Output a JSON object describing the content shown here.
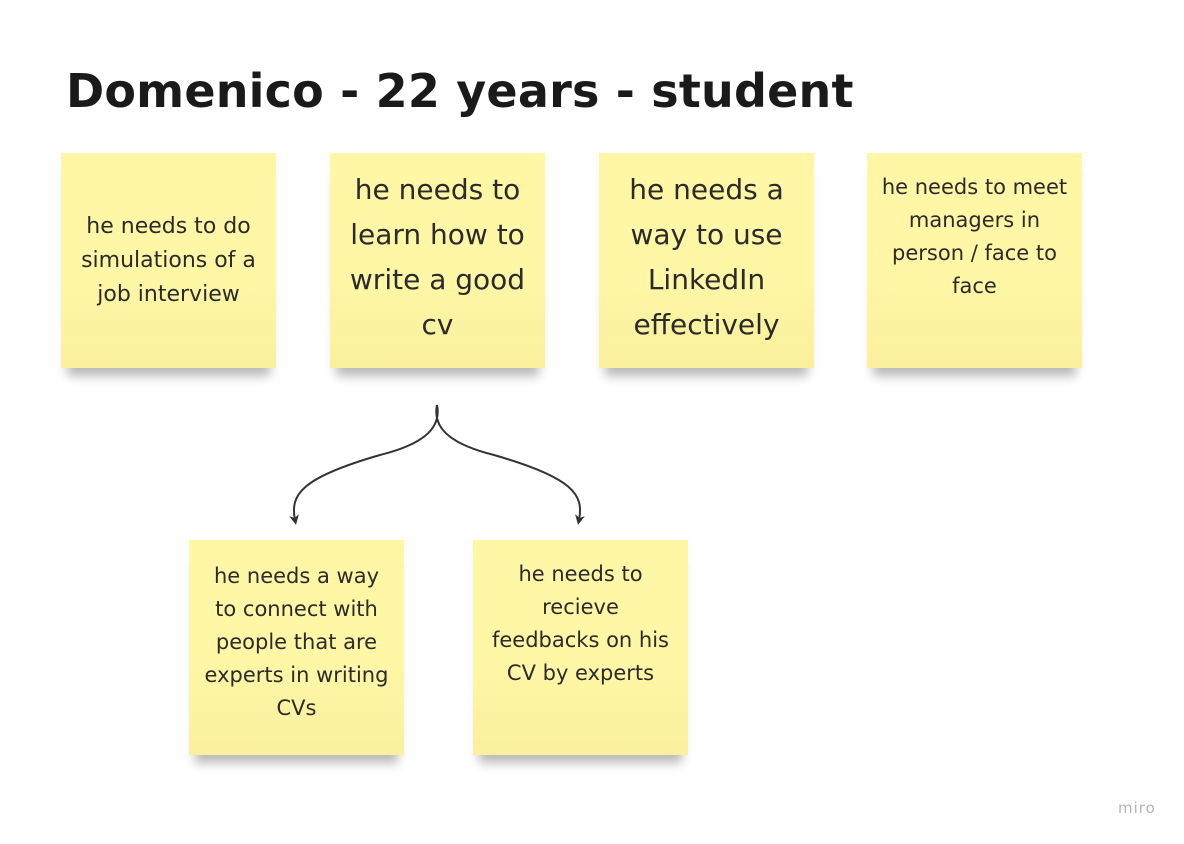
{
  "title": "Domenico - 22 years - student",
  "notes": [
    {
      "text": "he needs to do simulations of a job interview"
    },
    {
      "text": "he needs to learn how to write a good cv"
    },
    {
      "text": "he needs a way to use LinkedIn effectively"
    },
    {
      "text": "he needs to meet managers in person / face to face"
    },
    {
      "text": "he needs a way to connect with people that are experts in writing CVs"
    },
    {
      "text": "he needs to recieve feedbacks on his CV by experts"
    }
  ],
  "colors": {
    "sticky_note": "#fff6a6",
    "connector": "#333333",
    "title_text": "#1a1a1a"
  },
  "connections": [
    {
      "from": "note-2",
      "to": "note-5"
    },
    {
      "from": "note-2",
      "to": "note-6"
    }
  ],
  "watermark": "miro"
}
